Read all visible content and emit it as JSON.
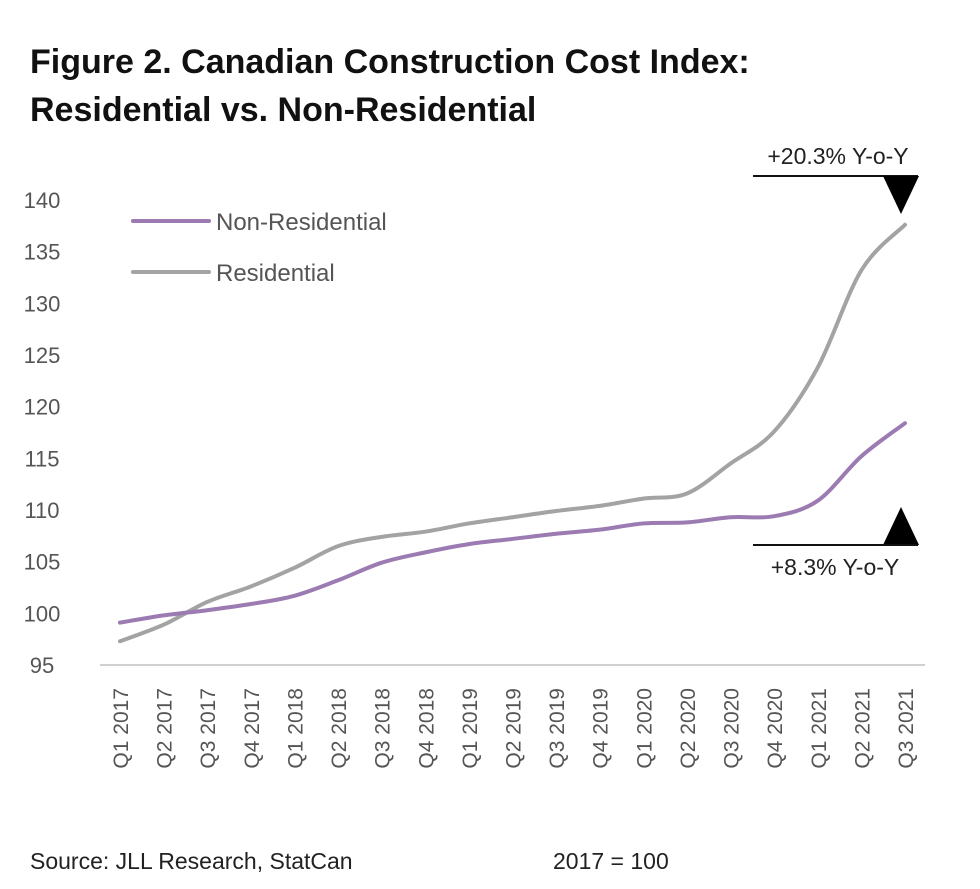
{
  "title_line1": "Figure 2. Canadian Construction Cost Index:",
  "title_line2": "Residential vs. Non-Residential",
  "footer": {
    "source": "Source: JLL Research, StatCan",
    "base": "2017 = 100"
  },
  "chart_data": {
    "type": "line",
    "categories": [
      "Q1 2017",
      "Q2 2017",
      "Q3 2017",
      "Q4 2017",
      "Q1 2018",
      "Q2 2018",
      "Q3 2018",
      "Q4 2018",
      "Q1 2019",
      "Q2 2019",
      "Q3 2019",
      "Q4 2019",
      "Q1 2020",
      "Q2 2020",
      "Q3 2020",
      "Q4 2020",
      "Q1 2021",
      "Q2 2021",
      "Q3 2021"
    ],
    "ylim": [
      95,
      140
    ],
    "yticks": [
      95,
      100,
      105,
      110,
      115,
      120,
      125,
      130,
      135,
      140
    ],
    "legend_position": "top-left",
    "grid": false,
    "series": [
      {
        "name": "Non-Residential",
        "color": "#9b7bb1",
        "values": [
          99.1,
          99.8,
          100.3,
          100.9,
          101.7,
          103.2,
          104.9,
          105.9,
          106.7,
          107.2,
          107.7,
          108.1,
          108.7,
          108.8,
          109.3,
          109.4,
          110.9,
          115.2,
          118.4
        ]
      },
      {
        "name": "Residential",
        "color": "#a3a3a3",
        "values": [
          97.3,
          98.9,
          101.1,
          102.6,
          104.4,
          106.5,
          107.4,
          107.9,
          108.7,
          109.3,
          109.9,
          110.4,
          111.1,
          111.6,
          114.5,
          117.6,
          123.8,
          133.2,
          137.6
        ]
      }
    ],
    "annotations": [
      {
        "label": "+20.3% Y-o-Y",
        "marker": "down-triangle",
        "series": "Residential"
      },
      {
        "label": "+8.3% Y-o-Y",
        "marker": "up-triangle",
        "series": "Non-Residential"
      }
    ]
  }
}
